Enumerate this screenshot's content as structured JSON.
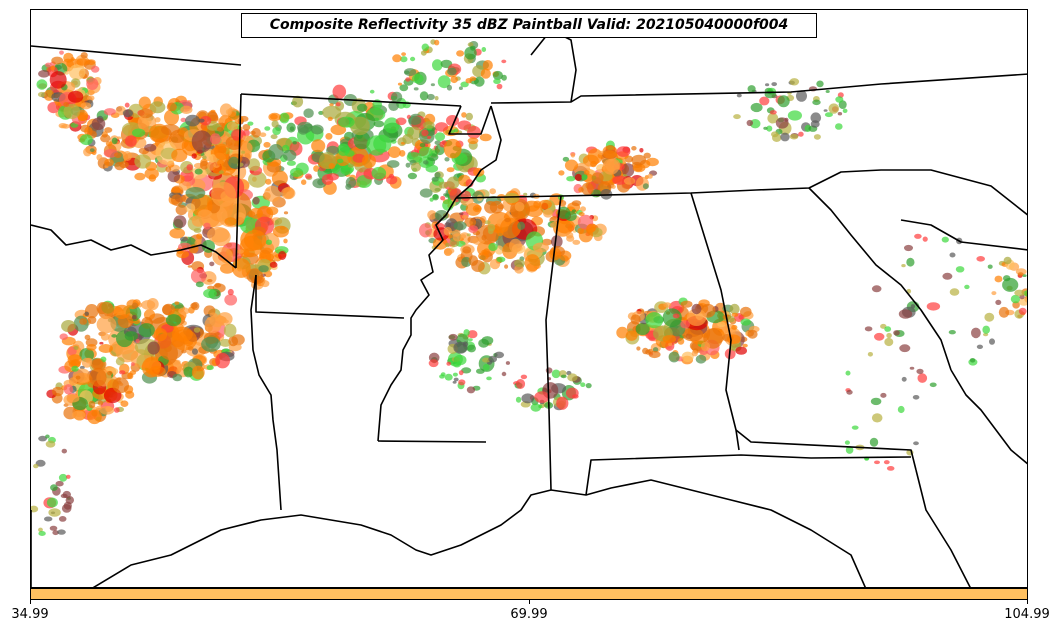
{
  "title": "Composite Reflectivity 35 dBZ Paintball Valid: 202105040000f004",
  "colorbar": {
    "color": "#ffc060",
    "tick_labels": [
      "34.99",
      "69.99",
      "104.99"
    ]
  },
  "paint_colors": [
    "#ff7f00",
    "#e8720a",
    "#ff3c3c",
    "#e00000",
    "#3cd83c",
    "#2fa02f",
    "#4f8f4f",
    "#a8a83a",
    "#b8b040",
    "#8a4040",
    "#5a5a5a",
    "#ff9f40",
    "#ffbf60",
    "#ff6060"
  ]
}
